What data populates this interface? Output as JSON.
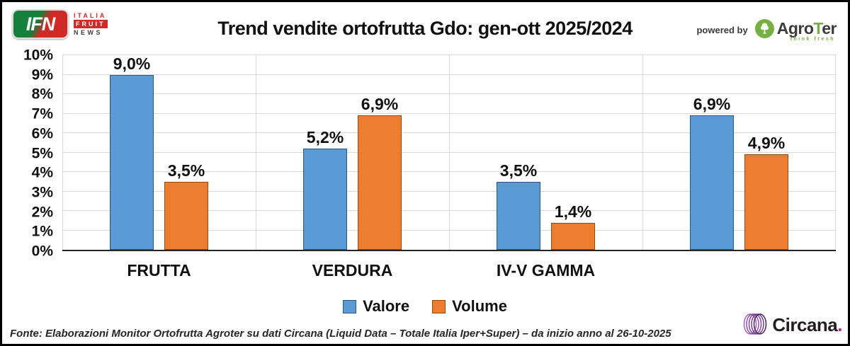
{
  "header": {
    "ifn_logo": {
      "acronym": "IFN",
      "word1": "ITALIA",
      "word2": "FRUIT",
      "word3": "NEWS"
    },
    "title": "Trend vendite ortofrutta Gdo: gen-ott 2025/2024",
    "powered_by": "powered by",
    "agroter": {
      "name_prefix": "Agro",
      "name_t": "T",
      "name_suffix": "er",
      "tagline": "think fresh"
    }
  },
  "chart_data": {
    "type": "bar",
    "title": "Trend vendite ortofrutta Gdo: gen-ott 2025/2024",
    "categories": [
      "FRUTTA",
      "VERDURA",
      "IV-V GAMMA",
      ""
    ],
    "series": [
      {
        "name": "Valore",
        "values": [
          9.0,
          5.2,
          3.5,
          6.9
        ],
        "labels": [
          "9,0%",
          "5,2%",
          "3,5%",
          "6,9%"
        ],
        "fill": "#5B9BD5",
        "border": "#31557C"
      },
      {
        "name": "Volume",
        "values": [
          3.5,
          6.9,
          1.4,
          4.9
        ],
        "labels": [
          "3,5%",
          "6,9%",
          "1,4%",
          "4,9%"
        ],
        "fill": "#ED7D31",
        "border": "#8F4A16"
      }
    ],
    "xlabel": "",
    "ylabel": "",
    "ylim": [
      0,
      10
    ],
    "ytick_step": 1,
    "ytick_labels": [
      "0%",
      "1%",
      "2%",
      "3%",
      "4%",
      "5%",
      "6%",
      "7%",
      "8%",
      "9%",
      "10%"
    ],
    "grid": true,
    "grid_color": "#D9D9D9",
    "axis_color": "#262626",
    "legend_position": "bottom"
  },
  "footer": {
    "source": "Fonte: Elaborazioni Monitor Ortofrutta Agroter su dati Circana (Liquid Data – Totale Italia Iper+Super) –  da inizio anno al 26-10-2025",
    "circana_name": "Circana",
    "circana_dot": "."
  }
}
